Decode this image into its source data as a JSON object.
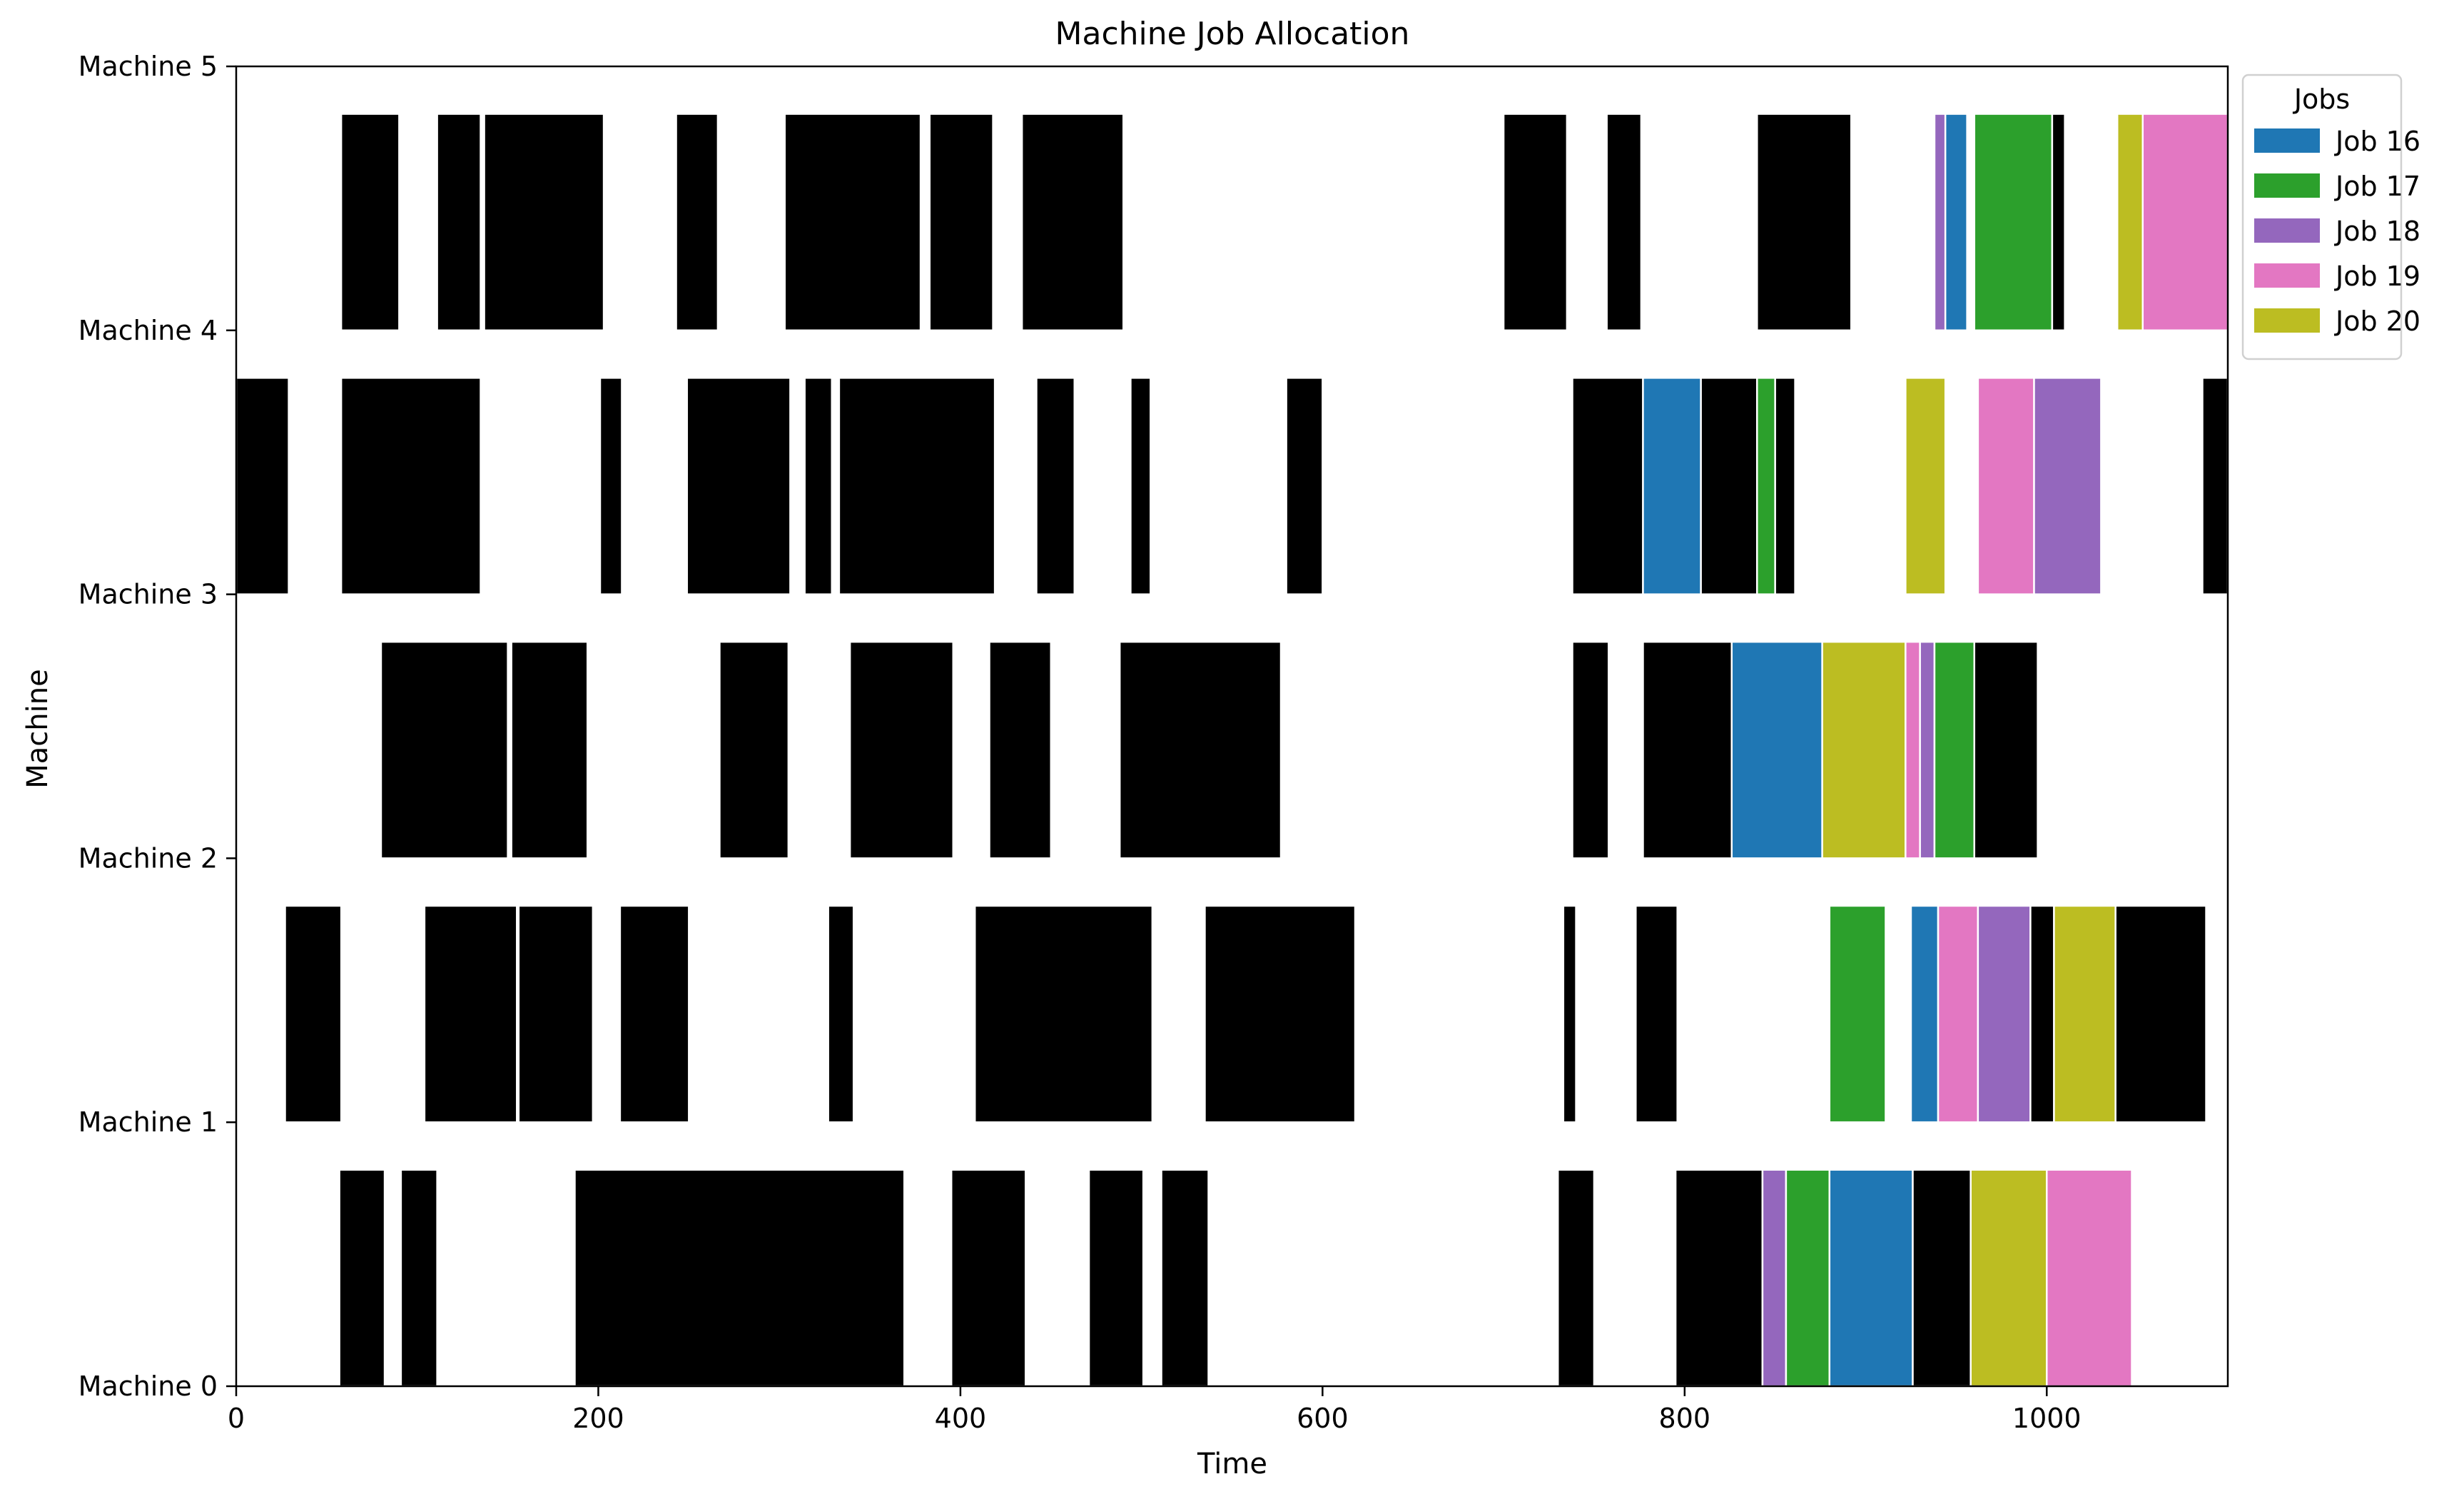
{
  "chart_data": {
    "type": "gantt",
    "title": "Machine Job Allocation",
    "xlabel": "Time",
    "ylabel": "Machine",
    "xlim": [
      0,
      1100
    ],
    "xticks": [
      0,
      200,
      400,
      600,
      800,
      1000
    ],
    "ylim": [
      0,
      5
    ],
    "yticks": [
      {
        "value": 0,
        "label": "Machine 0"
      },
      {
        "value": 1,
        "label": "Machine 1"
      },
      {
        "value": 2,
        "label": "Machine 2"
      },
      {
        "value": 3,
        "label": "Machine 3"
      },
      {
        "value": 4,
        "label": "Machine 4"
      },
      {
        "value": 5,
        "label": "Machine 5"
      }
    ],
    "grid": false,
    "legend": {
      "title": "Jobs",
      "placement": "outside-top-right",
      "entries": [
        {
          "label": "Job 16",
          "color": "#1f77b4"
        },
        {
          "label": "Job 17",
          "color": "#2ca02c"
        },
        {
          "label": "Job 18",
          "color": "#9467bd"
        },
        {
          "label": "Job 19",
          "color": "#e377c2"
        },
        {
          "label": "Job 20",
          "color": "#bcbd22"
        }
      ]
    },
    "other_jobs_color": "#000000",
    "tasks": [
      {
        "machine": 0,
        "start": 57,
        "end": 82,
        "job": "other"
      },
      {
        "machine": 0,
        "start": 91,
        "end": 111,
        "job": "other"
      },
      {
        "machine": 0,
        "start": 187,
        "end": 369,
        "job": "other"
      },
      {
        "machine": 0,
        "start": 395,
        "end": 436,
        "job": "other"
      },
      {
        "machine": 0,
        "start": 471,
        "end": 501,
        "job": "other"
      },
      {
        "machine": 0,
        "start": 511,
        "end": 537,
        "job": "other"
      },
      {
        "machine": 0,
        "start": 730,
        "end": 750,
        "job": "other"
      },
      {
        "machine": 0,
        "start": 795,
        "end": 843,
        "job": "other"
      },
      {
        "machine": 0,
        "start": 843,
        "end": 856,
        "job": "Job 18"
      },
      {
        "machine": 0,
        "start": 856,
        "end": 880,
        "job": "Job 17"
      },
      {
        "machine": 0,
        "start": 880,
        "end": 926,
        "job": "Job 16"
      },
      {
        "machine": 0,
        "start": 926,
        "end": 958,
        "job": "other"
      },
      {
        "machine": 0,
        "start": 958,
        "end": 1000,
        "job": "Job 20"
      },
      {
        "machine": 0,
        "start": 1000,
        "end": 1047,
        "job": "Job 19"
      },
      {
        "machine": 1,
        "start": 27,
        "end": 58,
        "job": "other"
      },
      {
        "machine": 1,
        "start": 104,
        "end": 155,
        "job": "other"
      },
      {
        "machine": 1,
        "start": 156,
        "end": 197,
        "job": "other"
      },
      {
        "machine": 1,
        "start": 212,
        "end": 250,
        "job": "other"
      },
      {
        "machine": 1,
        "start": 327,
        "end": 341,
        "job": "other"
      },
      {
        "machine": 1,
        "start": 408,
        "end": 506,
        "job": "other"
      },
      {
        "machine": 1,
        "start": 535,
        "end": 618,
        "job": "other"
      },
      {
        "machine": 1,
        "start": 733,
        "end": 740,
        "job": "other"
      },
      {
        "machine": 1,
        "start": 773,
        "end": 796,
        "job": "other"
      },
      {
        "machine": 1,
        "start": 880,
        "end": 911,
        "job": "Job 17"
      },
      {
        "machine": 1,
        "start": 925,
        "end": 940,
        "job": "Job 16"
      },
      {
        "machine": 1,
        "start": 940,
        "end": 962,
        "job": "Job 19"
      },
      {
        "machine": 1,
        "start": 962,
        "end": 991,
        "job": "Job 18"
      },
      {
        "machine": 1,
        "start": 991,
        "end": 1004,
        "job": "other"
      },
      {
        "machine": 1,
        "start": 1004,
        "end": 1038,
        "job": "Job 20"
      },
      {
        "machine": 1,
        "start": 1038,
        "end": 1088,
        "job": "other"
      },
      {
        "machine": 2,
        "start": 80,
        "end": 150,
        "job": "other"
      },
      {
        "machine": 2,
        "start": 152,
        "end": 194,
        "job": "other"
      },
      {
        "machine": 2,
        "start": 267,
        "end": 305,
        "job": "other"
      },
      {
        "machine": 2,
        "start": 339,
        "end": 396,
        "job": "other"
      },
      {
        "machine": 2,
        "start": 416,
        "end": 450,
        "job": "other"
      },
      {
        "machine": 2,
        "start": 488,
        "end": 577,
        "job": "other"
      },
      {
        "machine": 2,
        "start": 738,
        "end": 758,
        "job": "other"
      },
      {
        "machine": 2,
        "start": 777,
        "end": 826,
        "job": "other"
      },
      {
        "machine": 2,
        "start": 826,
        "end": 876,
        "job": "Job 16"
      },
      {
        "machine": 2,
        "start": 876,
        "end": 922,
        "job": "Job 20"
      },
      {
        "machine": 2,
        "start": 922,
        "end": 930,
        "job": "Job 19"
      },
      {
        "machine": 2,
        "start": 930,
        "end": 938,
        "job": "Job 18"
      },
      {
        "machine": 2,
        "start": 938,
        "end": 960,
        "job": "Job 17"
      },
      {
        "machine": 2,
        "start": 960,
        "end": 995,
        "job": "other"
      },
      {
        "machine": 3,
        "start": 0,
        "end": 29,
        "job": "other"
      },
      {
        "machine": 3,
        "start": 58,
        "end": 135,
        "job": "other"
      },
      {
        "machine": 3,
        "start": 201,
        "end": 213,
        "job": "other"
      },
      {
        "machine": 3,
        "start": 249,
        "end": 306,
        "job": "other"
      },
      {
        "machine": 3,
        "start": 314,
        "end": 329,
        "job": "other"
      },
      {
        "machine": 3,
        "start": 333,
        "end": 419,
        "job": "other"
      },
      {
        "machine": 3,
        "start": 442,
        "end": 463,
        "job": "other"
      },
      {
        "machine": 3,
        "start": 494,
        "end": 505,
        "job": "other"
      },
      {
        "machine": 3,
        "start": 580,
        "end": 600,
        "job": "other"
      },
      {
        "machine": 3,
        "start": 738,
        "end": 777,
        "job": "other"
      },
      {
        "machine": 3,
        "start": 777,
        "end": 809,
        "job": "Job 16"
      },
      {
        "machine": 3,
        "start": 809,
        "end": 840,
        "job": "other"
      },
      {
        "machine": 3,
        "start": 840,
        "end": 850,
        "job": "Job 17"
      },
      {
        "machine": 3,
        "start": 850,
        "end": 861,
        "job": "other"
      },
      {
        "machine": 3,
        "start": 922,
        "end": 944,
        "job": "Job 20"
      },
      {
        "machine": 3,
        "start": 962,
        "end": 993,
        "job": "Job 19"
      },
      {
        "machine": 3,
        "start": 993,
        "end": 1030,
        "job": "Job 18"
      },
      {
        "machine": 3,
        "start": 1086,
        "end": 1100,
        "job": "other"
      },
      {
        "machine": 4,
        "start": 58,
        "end": 90,
        "job": "other"
      },
      {
        "machine": 4,
        "start": 111,
        "end": 135,
        "job": "other"
      },
      {
        "machine": 4,
        "start": 137,
        "end": 203,
        "job": "other"
      },
      {
        "machine": 4,
        "start": 243,
        "end": 266,
        "job": "other"
      },
      {
        "machine": 4,
        "start": 303,
        "end": 378,
        "job": "other"
      },
      {
        "machine": 4,
        "start": 383,
        "end": 418,
        "job": "other"
      },
      {
        "machine": 4,
        "start": 434,
        "end": 490,
        "job": "other"
      },
      {
        "machine": 4,
        "start": 700,
        "end": 735,
        "job": "other"
      },
      {
        "machine": 4,
        "start": 757,
        "end": 776,
        "job": "other"
      },
      {
        "machine": 4,
        "start": 840,
        "end": 892,
        "job": "other"
      },
      {
        "machine": 4,
        "start": 938,
        "end": 944,
        "job": "Job 18"
      },
      {
        "machine": 4,
        "start": 944,
        "end": 956,
        "job": "Job 16"
      },
      {
        "machine": 4,
        "start": 960,
        "end": 1003,
        "job": "Job 17"
      },
      {
        "machine": 4,
        "start": 1003,
        "end": 1010,
        "job": "other"
      },
      {
        "machine": 4,
        "start": 1039,
        "end": 1053,
        "job": "Job 20"
      },
      {
        "machine": 4,
        "start": 1053,
        "end": 1100,
        "job": "Job 19"
      }
    ]
  }
}
